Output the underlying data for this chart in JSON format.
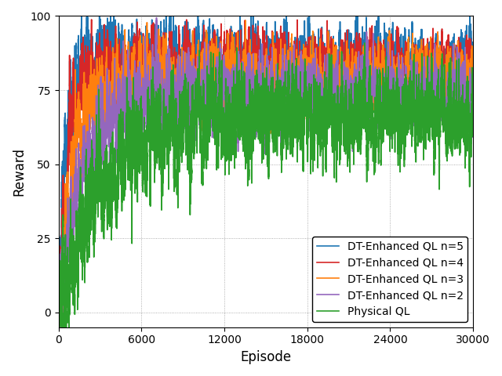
{
  "title": "",
  "xlabel": "Episode",
  "ylabel": "Reward",
  "xlim": [
    0,
    30000
  ],
  "ylim": [
    -5,
    100
  ],
  "yticks": [
    0,
    25,
    50,
    75,
    100
  ],
  "xticks": [
    0,
    6000,
    12000,
    18000,
    24000,
    30000
  ],
  "series": [
    {
      "label": "DT-Enhanced QL n=5",
      "color": "#1f77b4",
      "final_mean": 85.0,
      "convergence_ep": 2500,
      "noise_scale": 4.5,
      "smooth_window": 150,
      "seed": 1
    },
    {
      "label": "DT-Enhanced QL n=4",
      "color": "#d62728",
      "final_mean": 82.5,
      "convergence_ep": 3500,
      "noise_scale": 4.5,
      "smooth_window": 150,
      "seed": 2
    },
    {
      "label": "DT-Enhanced QL n=3",
      "color": "#ff7f0e",
      "final_mean": 79.0,
      "convergence_ep": 5000,
      "noise_scale": 4.5,
      "smooth_window": 150,
      "seed": 3
    },
    {
      "label": "DT-Enhanced QL n=2",
      "color": "#9467bd",
      "final_mean": 74.0,
      "convergence_ep": 9000,
      "noise_scale": 4.5,
      "smooth_window": 150,
      "seed": 4
    },
    {
      "label": "Physical QL",
      "color": "#2ca02c",
      "final_mean": 66.0,
      "convergence_ep": 15000,
      "noise_scale": 5.5,
      "smooth_window": 200,
      "seed": 5
    }
  ],
  "legend_loc": "lower right",
  "legend_fontsize": 10,
  "linewidth": 1.2,
  "figsize": [
    6.4,
    4.8
  ],
  "dpi": 100
}
